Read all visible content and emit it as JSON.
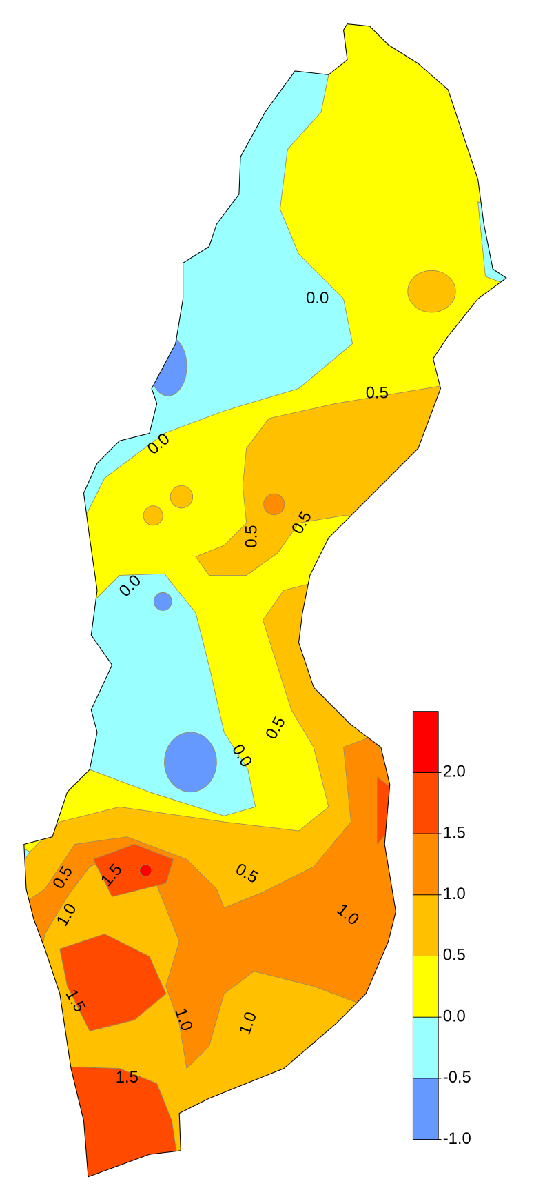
{
  "legend": {
    "bins": [
      -1.0,
      -0.5,
      0.0,
      0.5,
      1.0,
      1.5,
      2.0,
      2.5
    ],
    "colors": [
      "#6699ff",
      "#99ffff",
      "#ffff00",
      "#ffc000",
      "#ff8c00",
      "#ff4a00",
      "#ff0000"
    ],
    "ticks": [
      {
        "value": -1.0,
        "label": "-1.0"
      },
      {
        "value": -0.5,
        "label": "-0.5"
      },
      {
        "value": 0.0,
        "label": "0.0"
      },
      {
        "value": 0.5,
        "label": "0.5"
      },
      {
        "value": 1.0,
        "label": "1.0"
      },
      {
        "value": 1.5,
        "label": "1.5"
      },
      {
        "value": 2.0,
        "label": "2.0"
      }
    ]
  },
  "contour_labels": [
    {
      "value": 0.0,
      "label": "0.0"
    },
    {
      "value": 0.5,
      "label": "0.5"
    },
    {
      "value": 0.0,
      "label": "0.0"
    },
    {
      "value": 0.5,
      "label": "0.5"
    },
    {
      "value": 0.5,
      "label": "0.5"
    },
    {
      "value": 0.0,
      "label": "0.0"
    },
    {
      "value": 0.5,
      "label": "0.5"
    },
    {
      "value": 0.0,
      "label": "0.0"
    },
    {
      "value": 1.5,
      "label": "1.5"
    },
    {
      "value": 0.5,
      "label": "0.5"
    },
    {
      "value": 0.5,
      "label": "0.5"
    },
    {
      "value": 1.0,
      "label": "1.0"
    },
    {
      "value": 1.0,
      "label": "1.0"
    },
    {
      "value": 1.5,
      "label": "1.5"
    },
    {
      "value": 1.0,
      "label": "1.0"
    },
    {
      "value": 1.0,
      "label": "1.0"
    },
    {
      "value": 1.5,
      "label": "1.5"
    }
  ]
}
